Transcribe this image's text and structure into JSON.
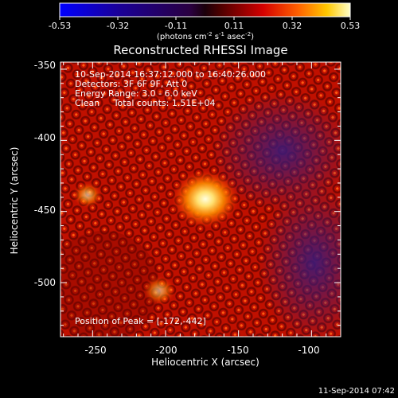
{
  "colorbar": {
    "ticks": [
      "-0.53",
      "-0.32",
      "-0.11",
      "0.11",
      "0.32",
      "0.53"
    ],
    "units_prefix": "(photons cm",
    "units_exp1": "-2",
    "units_mid": " s",
    "units_exp2": "-1",
    "units_mid2": " asec",
    "units_exp3": "-2",
    "units_suffix": ")"
  },
  "image": {
    "title": "Reconstructed RHESSI Image",
    "info_lines": [
      "10-Sep-2014 16:37:12.000 to 16:40:26.000",
      "Detectors: 3F 6F 9F, Att 0",
      "Energy Range: 3.0 - 6.0 keV",
      "Clean     Total counts: 1.51E+04"
    ],
    "peak_label": "Position of Peak = [-172,-442]",
    "peak": {
      "x": -172,
      "y": -442
    },
    "x_range": [
      -272,
      -80
    ],
    "y_range": [
      -538,
      -345
    ]
  },
  "axes": {
    "xlabel": "Heliocentric X (arcsec)",
    "ylabel": "Heliocentric Y (arcsec)",
    "x_ticks": [
      "-250",
      "-200",
      "-150",
      "-100"
    ],
    "x_tick_values": [
      -250,
      -200,
      -150,
      -100
    ],
    "y_ticks": [
      "-350",
      "-400",
      "-450",
      "-500"
    ],
    "y_tick_values": [
      -350,
      -400,
      -450,
      -500
    ]
  },
  "footer": {
    "timestamp": "11-Sep-2014 07:42"
  }
}
